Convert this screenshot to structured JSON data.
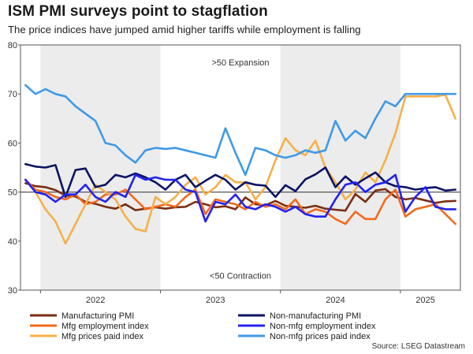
{
  "title": "ISM PMI surveys point to stagflation",
  "subtitle": "The price indices have jumped amid higher tariffs while employment is falling",
  "source": "Source: LSEG Datastream",
  "chart_data": {
    "type": "line",
    "ylim": [
      30,
      80
    ],
    "yticks": [
      30,
      40,
      50,
      60,
      70,
      80
    ],
    "x_start": "2021-11",
    "x_end": "2025-06",
    "year_ticks": [
      {
        "label": "2022",
        "month": "2022-06"
      },
      {
        "label": "2023",
        "month": "2023-06"
      },
      {
        "label": "2024",
        "month": "2024-06"
      },
      {
        "label": "2025",
        "month": "2025-03"
      }
    ],
    "shaded_years": [
      "2022",
      "2024"
    ],
    "reference_line": 50,
    "annotations": [
      {
        "text": ">50 Expansion",
        "y": 76.5
      },
      {
        "text": "<50 Contraction",
        "y": 33
      }
    ],
    "grid": false,
    "legend_position": "bottom",
    "series": [
      {
        "name": "Manufacturing PMI",
        "color": "#7a2e12",
        "values": [
          51.8,
          51.2,
          51.0,
          50.4,
          49.3,
          49.1,
          48.0,
          47.6,
          47.0,
          46.6,
          47.5,
          46.3,
          46.6,
          46.9,
          46.6,
          46.9,
          47.0,
          48.0,
          47.5,
          46.9,
          47.1,
          46.5,
          48.9,
          47.5,
          47.3,
          48.2,
          47.2,
          47.0,
          46.8,
          47.2,
          46.6,
          46.4,
          46.2,
          49.6,
          48.0,
          50.3,
          50.6,
          49.0,
          48.5,
          48.8,
          48.3,
          47.8,
          48.1,
          48.2
        ]
      },
      {
        "name": "Mfg employment index",
        "color": "#f26a1e",
        "values": [
          52.5,
          50.5,
          50.0,
          49.0,
          48.5,
          49.5,
          47.5,
          48.0,
          49.5,
          49.5,
          50.5,
          48.5,
          46.5,
          47.0,
          47.5,
          47.0,
          49.0,
          50.5,
          45.5,
          48.5,
          48.0,
          47.5,
          46.5,
          48.0,
          47.0,
          47.5,
          46.5,
          48.5,
          45.5,
          46.5,
          46.0,
          44.5,
          43.5,
          46.0,
          44.5,
          44.5,
          48.5,
          50.5,
          45.0,
          46.5,
          47.0,
          47.5,
          45.5,
          43.5
        ]
      },
      {
        "name": "Mfg prices paid index",
        "color": "#f7b04a",
        "values": [
          52.5,
          50.0,
          46.5,
          44.0,
          39.5,
          43.5,
          47.5,
          51.5,
          50.0,
          48.5,
          45.0,
          42.5,
          42.0,
          49.0,
          47.5,
          49.0,
          51.5,
          53.0,
          49.5,
          51.0,
          53.5,
          52.0,
          52.0,
          48.5,
          51.0,
          56.5,
          61.0,
          58.5,
          57.5,
          60.5,
          55.0,
          52.0,
          48.5,
          50.5,
          54.0,
          52.0,
          56.5,
          62.0,
          69.5,
          69.5,
          69.5,
          69.5,
          69.8,
          65.0
        ]
      },
      {
        "name": "Non-manufacturing PMI",
        "color": "#0b1463",
        "values": [
          55.7,
          55.2,
          55.0,
          55.5,
          49.0,
          54.5,
          54.8,
          51.0,
          51.5,
          53.5,
          53.0,
          53.8,
          53.0,
          52.0,
          50.5,
          52.5,
          53.5,
          51.0,
          52.3,
          53.5,
          52.5,
          50.5,
          52.0,
          51.5,
          51.3,
          49.0,
          51.4,
          50.2,
          52.6,
          53.6,
          55.0,
          51.0,
          53.2,
          51.5,
          52.8,
          54.0,
          52.0,
          51.2,
          51.0,
          50.5,
          50.8,
          51.0,
          50.3,
          50.5
        ]
      },
      {
        "name": "Non-mfg employment index",
        "color": "#2323f0",
        "values": [
          52.5,
          50.0,
          49.5,
          48.0,
          49.5,
          49.5,
          51.5,
          49.0,
          48.0,
          50.0,
          49.0,
          53.5,
          52.5,
          53.0,
          52.5,
          52.5,
          50.5,
          50.0,
          44.0,
          48.0,
          47.5,
          49.5,
          47.0,
          46.5,
          47.5,
          47.0,
          46.0,
          47.0,
          45.5,
          45.0,
          45.0,
          48.5,
          51.5,
          52.0,
          50.0,
          51.5,
          52.0,
          53.5,
          46.0,
          49.0,
          51.0,
          47.0,
          46.5,
          46.5
        ]
      },
      {
        "name": "Non-mfg prices paid index",
        "color": "#3f9ae8",
        "values": [
          71.8,
          70.0,
          71.0,
          70.0,
          69.5,
          67.5,
          66.0,
          64.5,
          60.0,
          59.5,
          57.5,
          56.0,
          58.5,
          59.0,
          58.8,
          59.0,
          58.5,
          58.0,
          57.5,
          57.0,
          63.0,
          58.0,
          53.5,
          59.0,
          58.5,
          57.5,
          57.0,
          57.5,
          58.5,
          58.0,
          58.5,
          64.5,
          60.5,
          62.5,
          61.0,
          65.0,
          68.5,
          67.5,
          70.0,
          70.0,
          70.0,
          70.0,
          70.0,
          70.0
        ]
      }
    ]
  }
}
